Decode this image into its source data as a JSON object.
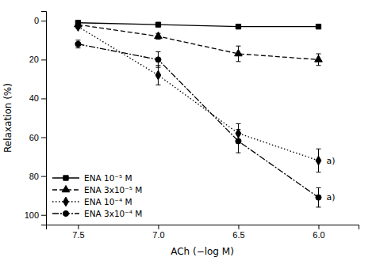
{
  "chart_data": {
    "type": "line",
    "x": [
      7.5,
      7.0,
      6.5,
      6.0
    ],
    "series": [
      {
        "name": "ENA 10⁻⁵ M",
        "values": [
          1,
          2,
          3,
          3
        ],
        "yerr": [
          0.5,
          0.5,
          1.0,
          1.0
        ],
        "marker": "square",
        "line_style": "solid"
      },
      {
        "name": "ENA 3x10⁻⁵ M",
        "values": [
          2,
          8,
          17,
          20
        ],
        "yerr": [
          1.0,
          1.5,
          4.0,
          3.0
        ],
        "marker": "triangle",
        "line_style": "dashed"
      },
      {
        "name": "ENA 10⁻⁴ M",
        "values": [
          3,
          28,
          58,
          72
        ],
        "yerr": [
          1.0,
          5.0,
          5.0,
          6.0
        ],
        "marker": "diamond",
        "line_style": "dotted"
      },
      {
        "name": "ENA 3x10⁻⁴ M",
        "values": [
          12,
          20,
          62,
          91
        ],
        "yerr": [
          2.0,
          4.0,
          6.0,
          5.0
        ],
        "marker": "circle",
        "line_style": "dashdot"
      }
    ],
    "xlabel": "ACh (−log M)",
    "ylabel": "Relaxation (%)",
    "xlim": [
      7.7,
      5.75
    ],
    "ylim": [
      105,
      -5
    ],
    "xticks": [
      7.5,
      {
        "value": 7,
        "label": "7.0"
      },
      6.5,
      {
        "value": 6,
        "label": "6.0"
      }
    ],
    "yticks": [
      0,
      20,
      40,
      60,
      80,
      100
    ],
    "annotations": [
      {
        "x": 6.0,
        "y": 72,
        "text": "a)"
      },
      {
        "x": 6.0,
        "y": 91,
        "text": "a)"
      }
    ],
    "legend": "lower left",
    "color": "black",
    "grid": false
  }
}
